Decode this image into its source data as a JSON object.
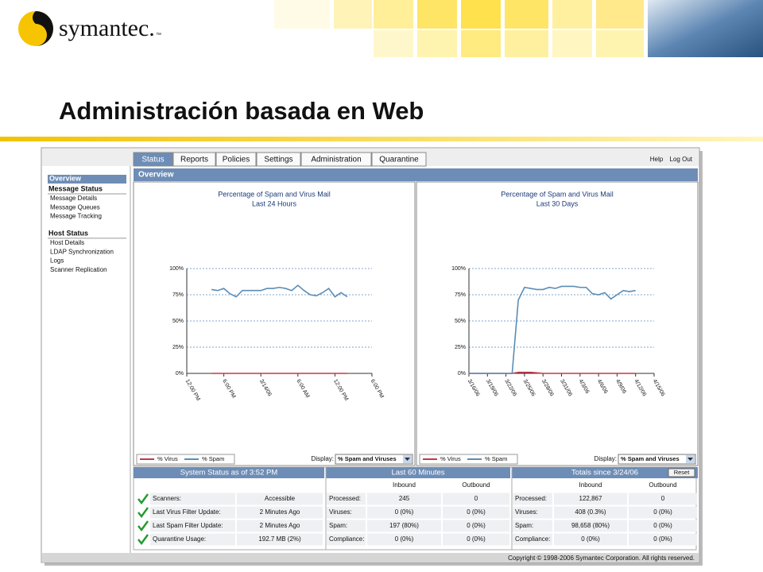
{
  "header": {
    "logo": "symantec.",
    "logo_mark": "™",
    "title": "Administración basada en Web"
  },
  "nav": {
    "tabs": [
      "Status",
      "Reports",
      "Policies",
      "Settings",
      "Administration",
      "Quarantine"
    ],
    "links": [
      "Help",
      "Log Out"
    ]
  },
  "page_title": "Overview",
  "sidebar": [
    {
      "title": "Overview",
      "items": []
    },
    {
      "title": "Message Status",
      "items": [
        "Message Details",
        "Message Queues",
        "Message Tracking"
      ]
    },
    {
      "title": "Host Status",
      "items": [
        "Host Details",
        "LDAP Synchronization",
        "Logs",
        "Scanner Replication"
      ]
    }
  ],
  "charts": [
    {
      "type": "line",
      "title": "Percentage of Spam and Virus Mail",
      "subtitle": "Last 24 Hours",
      "x": [
        4,
        5,
        6,
        7,
        8,
        9,
        10,
        11,
        12,
        13,
        14,
        15,
        16,
        17,
        18,
        19,
        20,
        21,
        22,
        23,
        24,
        25,
        26
      ],
      "series": [
        {
          "name": "% Virus",
          "color": "#c0394a",
          "values": [
            0,
            0,
            0,
            0,
            0,
            0,
            0,
            0,
            0,
            0,
            0,
            0,
            0,
            0,
            0,
            0,
            0,
            0,
            0,
            0,
            0,
            0,
            0
          ]
        },
        {
          "name": "% Spam",
          "color": "#5b8db5",
          "values": [
            80,
            79,
            81,
            76,
            73,
            79,
            79,
            79,
            79,
            81,
            81,
            82,
            81,
            79,
            84,
            79,
            75,
            74,
            77,
            81,
            73,
            77,
            73
          ]
        }
      ],
      "xlim": [
        0,
        30
      ],
      "xticks": [
        {
          "value": 0,
          "label": "12:00 PM"
        },
        {
          "value": 6,
          "label": "6:00 PM"
        },
        {
          "value": 12,
          "label": "3/14/06"
        },
        {
          "value": 18,
          "label": "6:00 AM"
        },
        {
          "value": 24,
          "label": "12:00 PM"
        },
        {
          "value": 30,
          "label": "6:00 PM"
        }
      ],
      "ylim": [
        0,
        100
      ],
      "yticks": [
        {
          "value": 0,
          "label": "0%"
        },
        {
          "value": 25,
          "label": "25%"
        },
        {
          "value": 50,
          "label": "50%"
        },
        {
          "value": 75,
          "label": "75%"
        },
        {
          "value": 100,
          "label": "100%"
        }
      ],
      "grid": true,
      "display_label": "Display:",
      "display_value": "% Spam and Viruses"
    },
    {
      "type": "line",
      "title": "Percentage of Spam and Virus Mail",
      "subtitle": "Last 30 Days",
      "x": [
        0,
        1,
        2,
        3,
        4,
        5,
        6,
        7,
        8,
        9,
        10,
        11,
        12,
        13,
        14,
        15,
        16,
        17,
        18,
        19,
        20,
        21,
        22,
        23,
        24,
        25,
        26,
        27
      ],
      "series": [
        {
          "name": "% Virus",
          "color": "#c0394a",
          "values": [
            0,
            0,
            0,
            0,
            0,
            0,
            0,
            0,
            1,
            1,
            1,
            0.5,
            0,
            0,
            0,
            0,
            0,
            0,
            0,
            0,
            0,
            0,
            0,
            0,
            0,
            0,
            0,
            0
          ]
        },
        {
          "name": "% Spam",
          "color": "#5b8db5",
          "values": [
            0,
            0,
            0,
            0,
            0,
            0,
            0,
            0,
            70,
            82,
            81,
            80,
            80,
            82,
            81,
            83,
            83,
            83,
            82,
            82,
            76,
            75,
            77,
            71,
            75,
            79,
            78,
            79
          ]
        }
      ],
      "xlim": [
        0,
        30
      ],
      "xticks": [
        {
          "value": 0,
          "label": "3/16/06"
        },
        {
          "value": 3,
          "label": "3/19/06"
        },
        {
          "value": 6,
          "label": "3/22/06"
        },
        {
          "value": 9,
          "label": "3/25/06"
        },
        {
          "value": 12,
          "label": "3/28/06"
        },
        {
          "value": 15,
          "label": "3/31/06"
        },
        {
          "value": 18,
          "label": "4/3/06"
        },
        {
          "value": 21,
          "label": "4/6/06"
        },
        {
          "value": 24,
          "label": "4/9/06"
        },
        {
          "value": 27,
          "label": "4/12/06"
        },
        {
          "value": 30,
          "label": "4/15/06"
        }
      ],
      "ylim": [
        0,
        100
      ],
      "yticks": [
        {
          "value": 0,
          "label": "0%"
        },
        {
          "value": 25,
          "label": "25%"
        },
        {
          "value": 50,
          "label": "50%"
        },
        {
          "value": 75,
          "label": "75%"
        },
        {
          "value": 100,
          "label": "100%"
        }
      ],
      "grid": true,
      "display_label": "Display:",
      "display_value": "% Spam and Viruses"
    }
  ],
  "system_status": {
    "title": "System Status as of 3:52 PM",
    "rows": [
      [
        "Scanners:",
        "Accessible"
      ],
      [
        "Last Virus Filter Update:",
        "2 Minutes Ago"
      ],
      [
        "Last Spam Filter Update:",
        "2 Minutes Ago"
      ],
      [
        "Quarantine Usage:",
        "192.7 MB (2%)"
      ]
    ]
  },
  "last_60": {
    "title": "Last 60 Minutes",
    "columns": [
      "Inbound",
      "Outbound"
    ],
    "rows": [
      [
        "Processed:",
        "245",
        "0"
      ],
      [
        "Viruses:",
        "0 (0%)",
        "0 (0%)"
      ],
      [
        "Spam:",
        "197 (80%)",
        "0 (0%)"
      ],
      [
        "Compliance:",
        "0 (0%)",
        "0 (0%)"
      ]
    ]
  },
  "totals": {
    "title": "Totals since 3/24/06",
    "button": "Reset",
    "columns": [
      "Inbound",
      "Outbound"
    ],
    "rows": [
      [
        "Processed:",
        "122,867",
        "0"
      ],
      [
        "Viruses:",
        "408 (0.3%)",
        "0 (0%)"
      ],
      [
        "Spam:",
        "98,658 (80%)",
        "0 (0%)"
      ],
      [
        "Compliance:",
        "0 (0%)",
        "0 (0%)"
      ]
    ]
  },
  "footer": "Copyright © 1998-2006 Symantec Corporation. All rights reserved."
}
